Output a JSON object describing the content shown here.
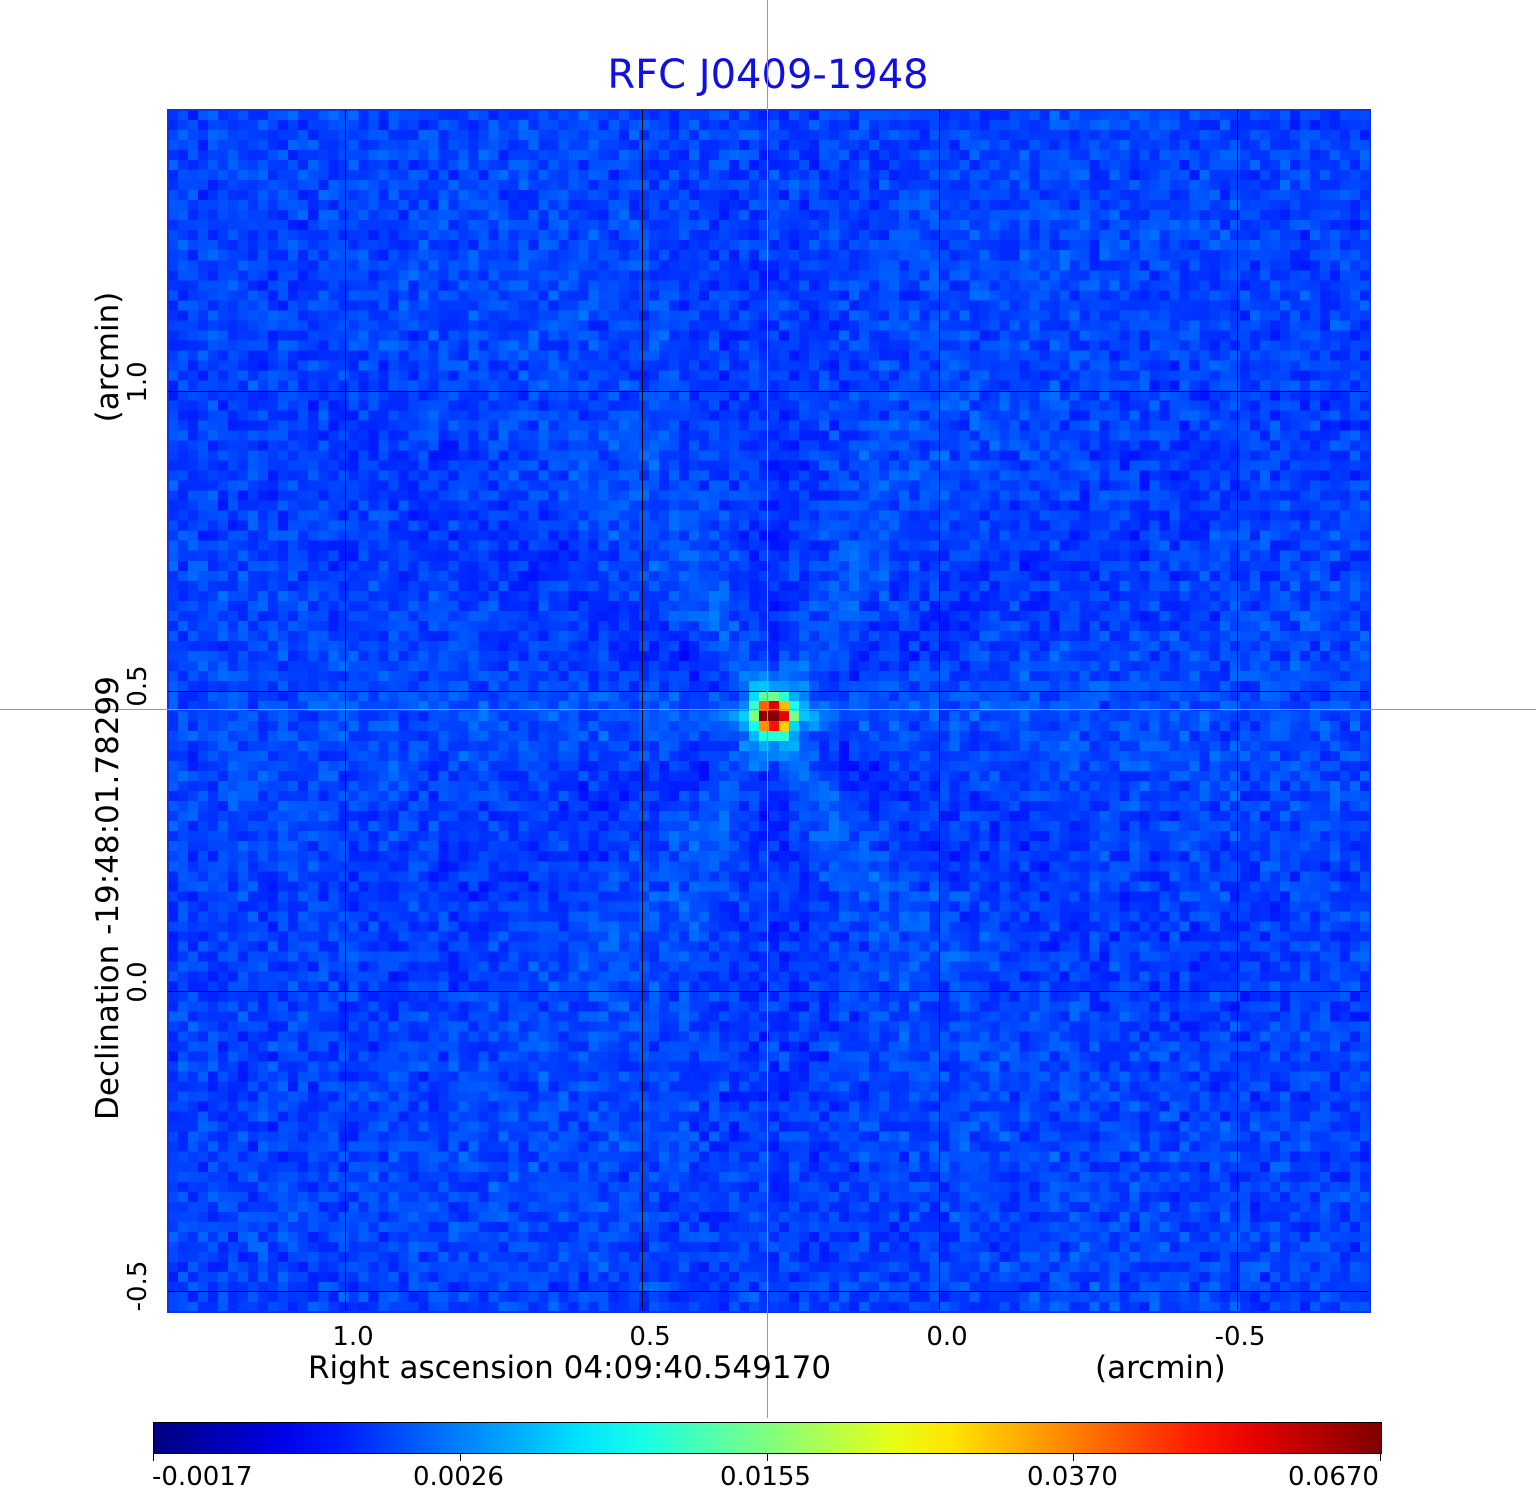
{
  "chart_data": {
    "type": "heatmap",
    "title": "RFC J0409-1948",
    "xlabel": "Right ascension  04:09:40.549170",
    "xunit": "(arcmin)",
    "ylabel": "Declination  -19:48:01.78299",
    "yunit": "(arcmin)",
    "x_ticks": [
      "1.0",
      "0.5",
      "0.0",
      "-0.5"
    ],
    "y_ticks": [
      "1.0",
      "0.5",
      "0.0",
      "-0.5"
    ],
    "x_tick_values": [
      1.0,
      0.5,
      0.0,
      -0.5
    ],
    "y_tick_values": [
      1.0,
      0.5,
      0.0,
      -0.5
    ],
    "xlim": [
      1.3,
      -0.72
    ],
    "ylim": [
      -0.535,
      1.47
    ],
    "grid": true,
    "colormap": "jet",
    "colorbar": {
      "ticks": [
        "-0.0017",
        "0.0026",
        "0.0155",
        "0.0370",
        "0.0670"
      ],
      "range": [
        -0.0017,
        0.067
      ],
      "placement": "bottom"
    },
    "crosshair_color": "#30e030",
    "title_color": "#1010e0"
  }
}
